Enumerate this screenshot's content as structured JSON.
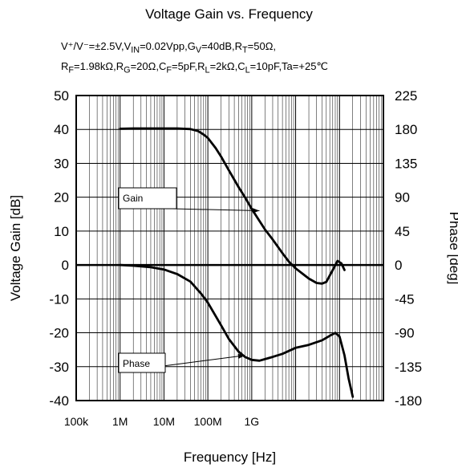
{
  "chart_data": {
    "type": "line",
    "title": "Voltage Gain vs. Frequency",
    "conditions": [
      "V⁺/V⁻=±2.5V,V<sub>IN</sub>=0.02Vpp,G<sub>V</sub>=40dB,R<sub>T</sub>=50Ω,",
      "R<sub>F</sub>=1.98kΩ,R<sub>G</sub>=20Ω,C<sub>F</sub>=5pF,R<sub>L</sub>=2kΩ,C<sub>L</sub>=10pF,Ta=+25℃"
    ],
    "xlabel": "Frequency [Hz]",
    "ylabel_left": "Voltage Gain [dB]",
    "ylabel_right": "Phase [deg]",
    "x_scale": "log",
    "xlim": [
      100000,
      1000000000000
    ],
    "x_ticks": [
      {
        "value": 100000,
        "label": "100k"
      },
      {
        "value": 1000000,
        "label": "1M"
      },
      {
        "value": 10000000,
        "label": "10M"
      },
      {
        "value": 100000000,
        "label": "100M"
      },
      {
        "value": 1000000000,
        "label": "1G"
      }
    ],
    "ylim_left": [
      -40,
      50
    ],
    "y_ticks_left": [
      50,
      40,
      30,
      20,
      10,
      0,
      -10,
      -20,
      -30,
      -40
    ],
    "ylim_right": [
      -180,
      225
    ],
    "y_ticks_right": [
      225,
      180,
      135,
      90,
      45,
      0,
      -45,
      -90,
      -135,
      -180
    ],
    "grid": true,
    "series": [
      {
        "name": "Gain",
        "axis": "left",
        "points": [
          [
            1000000,
            40.2
          ],
          [
            2000000,
            40.3
          ],
          [
            5000000,
            40.3
          ],
          [
            10000000,
            40.3
          ],
          [
            20000000,
            40.3
          ],
          [
            40000000,
            40.1
          ],
          [
            60000000,
            39.5
          ],
          [
            80000000,
            38.5
          ],
          [
            100000000,
            37.5
          ],
          [
            150000000,
            34.5
          ],
          [
            200000000,
            32
          ],
          [
            300000000,
            28
          ],
          [
            500000000,
            23
          ],
          [
            700000000,
            20
          ],
          [
            1000000000,
            16.5
          ],
          [
            1500000000,
            13
          ],
          [
            2000000000,
            10.5
          ],
          [
            3000000000,
            7.5
          ],
          [
            5000000000,
            3.5
          ],
          [
            7000000000,
            1
          ],
          [
            10000000000,
            -1
          ],
          [
            20000000000,
            -4
          ],
          [
            30000000000,
            -5.3
          ],
          [
            40000000000,
            -5.5
          ],
          [
            50000000000,
            -5
          ],
          [
            70000000000,
            -1.5
          ],
          [
            90000000000,
            1.2
          ],
          [
            110000000000,
            0.5
          ],
          [
            130000000000,
            -1.5
          ]
        ]
      },
      {
        "name": "Phase",
        "axis": "right",
        "points": [
          [
            1000000,
            0
          ],
          [
            2000000,
            -1
          ],
          [
            5000000,
            -3
          ],
          [
            10000000,
            -6
          ],
          [
            20000000,
            -12
          ],
          [
            40000000,
            -22
          ],
          [
            70000000,
            -38
          ],
          [
            100000000,
            -50
          ],
          [
            200000000,
            -80
          ],
          [
            300000000,
            -98
          ],
          [
            500000000,
            -115
          ],
          [
            700000000,
            -122
          ],
          [
            1000000000,
            -126
          ],
          [
            1500000000,
            -127
          ],
          [
            2000000000,
            -125
          ],
          [
            3000000000,
            -122
          ],
          [
            5000000000,
            -118
          ],
          [
            10000000000,
            -110
          ],
          [
            20000000000,
            -106
          ],
          [
            40000000000,
            -100
          ],
          [
            60000000000,
            -94
          ],
          [
            80000000000,
            -90
          ],
          [
            100000000000,
            -95
          ],
          [
            130000000000,
            -120
          ],
          [
            160000000000,
            -150
          ],
          [
            200000000000,
            -175
          ]
        ]
      }
    ],
    "annotations": [
      {
        "text": "Gain",
        "target": [
          1500000000,
          16.0
        ]
      },
      {
        "text": "Phase",
        "target": [
          700000000,
          -120
        ]
      }
    ],
    "colors": {
      "curve": "#000000",
      "grid": "#000000",
      "background": "#ffffff"
    }
  }
}
